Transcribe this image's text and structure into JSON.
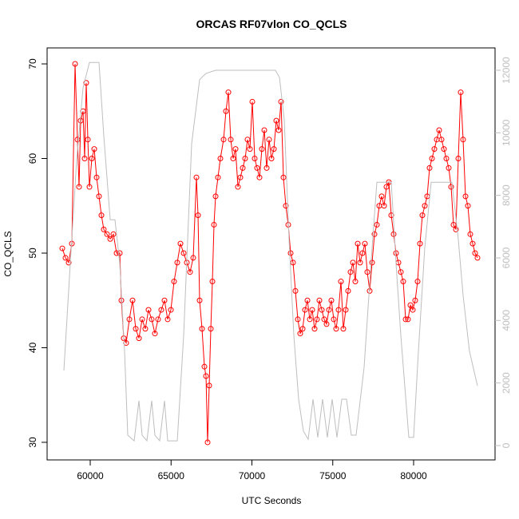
{
  "chart_data": {
    "type": "line",
    "title": "ORCAS RF07vlon CO_QCLS",
    "x_label": "UTC Seconds",
    "y_label": "CO_QCLS",
    "xlim": [
      57333,
      85037
    ],
    "ylim": [
      28.14,
      71.69
    ],
    "y2lim": [
      -460,
      12715
    ],
    "xticks": [
      60000,
      65000,
      70000,
      75000,
      80000
    ],
    "yticks": [
      30,
      40,
      50,
      60,
      70
    ],
    "y2ticks": [
      0,
      2000,
      4000,
      6000,
      8000,
      10000,
      12000
    ],
    "y2_color": "#bebebe",
    "series": [
      {
        "color": "#ff0000",
        "marker": "circle",
        "x": [
          58272,
          58469,
          58667,
          58864,
          59062,
          59210,
          59309,
          59407,
          59556,
          59654,
          59753,
          59852,
          59951,
          60099,
          60247,
          60395,
          60543,
          60691,
          60839,
          61037,
          61235,
          61432,
          61630,
          61827,
          61926,
          62074,
          62222,
          62420,
          62617,
          62815,
          63012,
          63210,
          63407,
          63605,
          63802,
          64000,
          64197,
          64395,
          64593,
          64790,
          64988,
          65185,
          65383,
          65580,
          65778,
          65975,
          66173,
          66370,
          66568,
          66667,
          66765,
          66914,
          67062,
          67161,
          67259,
          67358,
          67457,
          67556,
          67654,
          67753,
          67901,
          68049,
          68247,
          68395,
          68543,
          68691,
          68839,
          68987,
          69135,
          69284,
          69432,
          69580,
          69728,
          69876,
          70024,
          70172,
          70321,
          70469,
          70617,
          70765,
          70913,
          71061,
          71210,
          71358,
          71506,
          71654,
          71802,
          71950,
          72098,
          72247,
          72395,
          72543,
          72691,
          72839,
          72987,
          73136,
          73284,
          73432,
          73580,
          73728,
          73876,
          74024,
          74173,
          74321,
          74469,
          74617,
          74765,
          74913,
          75061,
          75210,
          75358,
          75506,
          75654,
          75802,
          75950,
          76098,
          76247,
          76395,
          76543,
          76691,
          76839,
          76987,
          77136,
          77284,
          77432,
          77580,
          77728,
          77876,
          78024,
          78173,
          78321,
          78469,
          78617,
          78765,
          78913,
          79061,
          79210,
          79358,
          79506,
          79654,
          79802,
          79950,
          80098,
          80247,
          80395,
          80543,
          80691,
          80839,
          80987,
          81136,
          81284,
          81432,
          81580,
          81728,
          81876,
          82024,
          82173,
          82321,
          82469,
          82617,
          82765,
          82913,
          83061,
          83210,
          83358,
          83506,
          83654,
          83802,
          83950
        ],
        "values": [
          50.5,
          49.5,
          49,
          51,
          70,
          62,
          57,
          64,
          65,
          60,
          68,
          62,
          57,
          60,
          61,
          58,
          56,
          54,
          52.5,
          52,
          51.5,
          52,
          50,
          50,
          45,
          41,
          40.5,
          43,
          45,
          42,
          41,
          43,
          42,
          44,
          43,
          41.5,
          43,
          44,
          45,
          43,
          44,
          47,
          49,
          51,
          50,
          49,
          48,
          49.5,
          58,
          54,
          45,
          42,
          38,
          37,
          30,
          36,
          42,
          47,
          53,
          56,
          58,
          60,
          62,
          65,
          67,
          62,
          60,
          61,
          57,
          58,
          59,
          60,
          62,
          61,
          66,
          60,
          59,
          58,
          61,
          63,
          59,
          62,
          60,
          61,
          64,
          63,
          66,
          58,
          55,
          53,
          50,
          49,
          46,
          43,
          41.5,
          42,
          44,
          45,
          43,
          44,
          42,
          43,
          45,
          44,
          43,
          42.5,
          44,
          45,
          43,
          42,
          44,
          47,
          42,
          44,
          46,
          48,
          49,
          47,
          51,
          49,
          50,
          51,
          48,
          46,
          49,
          52,
          53,
          55,
          56,
          55,
          57,
          57.5,
          54,
          52,
          50,
          49,
          48,
          47,
          43,
          43,
          44.5,
          44,
          45,
          47,
          51,
          54,
          55,
          56,
          59,
          60,
          61,
          62,
          63,
          62,
          61,
          60,
          59,
          57,
          53,
          52.5,
          60,
          67,
          62,
          56,
          55,
          52,
          51,
          50,
          49.5
        ]
      },
      {
        "color": "#bebebe",
        "axis": "y2",
        "x": [
          58370,
          58766,
          59161,
          59556,
          59951,
          60543,
          60839,
          61235,
          61531,
          61827,
          62123,
          62321,
          62716,
          63012,
          63210,
          63506,
          63802,
          64000,
          64296,
          64593,
          64790,
          65383,
          65778,
          66272,
          66765,
          67161,
          67753,
          69235,
          70716,
          71457,
          71704,
          72000,
          72296,
          72592,
          72889,
          73185,
          73481,
          73778,
          74074,
          74370,
          74666,
          74963,
          75259,
          75555,
          75852,
          76148,
          76444,
          76938,
          77432,
          77728,
          78024,
          78617,
          78913,
          79210,
          79704,
          80000,
          80296,
          80691,
          81087,
          82370,
          82765,
          83061,
          83456,
          83950
        ],
        "values": [
          2400,
          5820,
          9140,
          11440,
          12250,
          12250,
          9900,
          7220,
          7220,
          5820,
          3010,
          330,
          150,
          1430,
          330,
          150,
          1430,
          330,
          150,
          1430,
          150,
          150,
          3520,
          9650,
          11700,
          11900,
          12000,
          12000,
          12000,
          12000,
          11770,
          10420,
          6590,
          3520,
          1480,
          460,
          200,
          1480,
          260,
          1480,
          260,
          1480,
          260,
          1480,
          1480,
          330,
          330,
          2500,
          6330,
          8420,
          8420,
          8420,
          5820,
          3520,
          260,
          260,
          3010,
          6330,
          8420,
          8420,
          6590,
          4800,
          3010,
          1910
        ]
      }
    ]
  }
}
